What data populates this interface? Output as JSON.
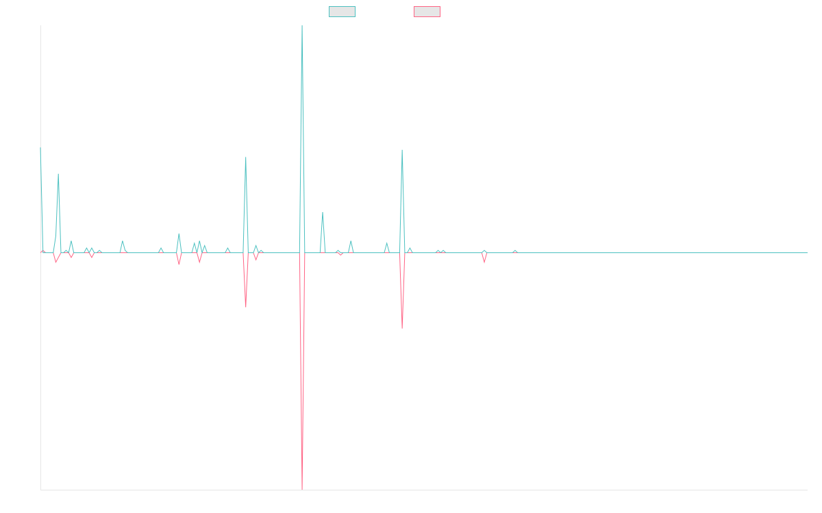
{
  "chart_data": {
    "type": "line",
    "title": "",
    "xlabel": "",
    "ylabel": "",
    "x_count": 300,
    "ylim": [
      -100,
      95
    ],
    "grid": false,
    "legend_position": "top-center",
    "series": [
      {
        "color": "#4bc0c0",
        "legend_fill": "#e6e6e6",
        "points": [
          [
            0,
            44
          ],
          [
            1,
            0
          ],
          [
            2,
            0
          ],
          [
            3,
            0
          ],
          [
            4,
            0
          ],
          [
            5,
            0
          ],
          [
            6,
            7
          ],
          [
            7,
            33
          ],
          [
            8,
            0
          ],
          [
            9,
            0
          ],
          [
            10,
            1
          ],
          [
            11,
            0
          ],
          [
            12,
            5
          ],
          [
            13,
            0
          ],
          [
            14,
            0
          ],
          [
            15,
            0
          ],
          [
            16,
            0
          ],
          [
            17,
            0
          ],
          [
            18,
            2
          ],
          [
            19,
            0
          ],
          [
            20,
            2
          ],
          [
            21,
            0
          ],
          [
            22,
            0
          ],
          [
            23,
            1
          ],
          [
            24,
            0
          ],
          [
            30,
            0
          ],
          [
            31,
            0
          ],
          [
            32,
            5
          ],
          [
            33,
            1
          ],
          [
            34,
            0
          ],
          [
            35,
            0
          ],
          [
            36,
            0
          ],
          [
            38,
            0
          ],
          [
            40,
            0
          ],
          [
            42,
            0
          ],
          [
            46,
            0
          ],
          [
            47,
            2
          ],
          [
            48,
            0
          ],
          [
            50,
            0
          ],
          [
            52,
            0
          ],
          [
            53,
            0
          ],
          [
            54,
            8
          ],
          [
            55,
            0
          ],
          [
            58,
            0
          ],
          [
            59,
            0
          ],
          [
            60,
            4
          ],
          [
            61,
            0
          ],
          [
            62,
            5
          ],
          [
            63,
            0
          ],
          [
            64,
            3
          ],
          [
            65,
            0
          ],
          [
            68,
            0
          ],
          [
            72,
            0
          ],
          [
            73,
            2
          ],
          [
            74,
            0
          ],
          [
            78,
            0
          ],
          [
            79,
            0
          ],
          [
            80,
            40
          ],
          [
            81,
            0
          ],
          [
            82,
            0
          ],
          [
            83,
            0
          ],
          [
            84,
            3
          ],
          [
            85,
            0
          ],
          [
            86,
            1
          ],
          [
            87,
            0
          ],
          [
            90,
            0
          ],
          [
            95,
            0
          ],
          [
            98,
            0
          ],
          [
            99,
            0
          ],
          [
            100,
            0
          ],
          [
            101,
            0
          ],
          [
            102,
            95
          ],
          [
            103,
            0
          ],
          [
            104,
            0
          ],
          [
            105,
            0
          ],
          [
            108,
            0
          ],
          [
            109,
            0
          ],
          [
            110,
            17
          ],
          [
            111,
            0
          ],
          [
            115,
            0
          ],
          [
            116,
            1
          ],
          [
            117,
            0
          ],
          [
            118,
            0
          ],
          [
            119,
            0
          ],
          [
            120,
            0
          ],
          [
            121,
            5
          ],
          [
            122,
            0
          ],
          [
            124,
            0
          ],
          [
            128,
            0
          ],
          [
            130,
            0
          ],
          [
            134,
            0
          ],
          [
            135,
            4
          ],
          [
            136,
            0
          ],
          [
            139,
            0
          ],
          [
            140,
            0
          ],
          [
            141,
            43
          ],
          [
            142,
            0
          ],
          [
            143,
            0
          ],
          [
            144,
            2
          ],
          [
            145,
            0
          ],
          [
            148,
            0
          ],
          [
            150,
            0
          ],
          [
            152,
            0
          ],
          [
            153,
            0
          ],
          [
            154,
            0
          ],
          [
            155,
            1
          ],
          [
            156,
            0
          ],
          [
            157,
            1
          ],
          [
            158,
            0
          ],
          [
            160,
            0
          ],
          [
            163,
            0
          ],
          [
            165,
            0
          ],
          [
            168,
            0
          ],
          [
            170,
            0
          ],
          [
            172,
            0
          ],
          [
            173,
            1
          ],
          [
            174,
            0
          ],
          [
            180,
            0
          ],
          [
            184,
            0
          ],
          [
            185,
            1
          ],
          [
            186,
            0
          ],
          [
            187,
            0
          ],
          [
            188,
            0
          ],
          [
            189,
            0
          ],
          [
            190,
            0
          ],
          [
            191,
            0
          ],
          [
            192,
            0
          ],
          [
            195,
            0
          ],
          [
            200,
            0
          ],
          [
            210,
            0
          ],
          [
            220,
            0
          ],
          [
            230,
            0
          ],
          [
            240,
            0
          ],
          [
            250,
            0
          ],
          [
            260,
            0
          ],
          [
            270,
            0
          ],
          [
            280,
            0
          ],
          [
            290,
            0
          ],
          [
            299,
            0
          ]
        ]
      },
      {
        "color": "#ff6384",
        "legend_fill": "#e6e6e6",
        "points": [
          [
            0,
            0
          ],
          [
            1,
            1
          ],
          [
            2,
            0
          ],
          [
            3,
            0
          ],
          [
            4,
            0
          ],
          [
            5,
            0
          ],
          [
            6,
            -4
          ],
          [
            7,
            -2
          ],
          [
            8,
            0
          ],
          [
            9,
            0
          ],
          [
            10,
            0
          ],
          [
            11,
            0
          ],
          [
            12,
            -2
          ],
          [
            13,
            0
          ],
          [
            14,
            0
          ],
          [
            15,
            0
          ],
          [
            16,
            0
          ],
          [
            17,
            0
          ],
          [
            18,
            0
          ],
          [
            19,
            0
          ],
          [
            20,
            -2
          ],
          [
            21,
            0
          ],
          [
            22,
            0
          ],
          [
            23,
            0
          ],
          [
            24,
            0
          ],
          [
            30,
            0
          ],
          [
            31,
            0
          ],
          [
            32,
            0
          ],
          [
            33,
            0
          ],
          [
            34,
            0
          ],
          [
            35,
            0
          ],
          [
            36,
            0
          ],
          [
            38,
            0
          ],
          [
            40,
            0
          ],
          [
            42,
            0
          ],
          [
            46,
            0
          ],
          [
            47,
            0
          ],
          [
            48,
            0
          ],
          [
            50,
            0
          ],
          [
            52,
            0
          ],
          [
            53,
            0
          ],
          [
            54,
            -5
          ],
          [
            55,
            0
          ],
          [
            58,
            0
          ],
          [
            59,
            0
          ],
          [
            60,
            0
          ],
          [
            61,
            0
          ],
          [
            62,
            -4
          ],
          [
            63,
            0
          ],
          [
            64,
            0
          ],
          [
            65,
            0
          ],
          [
            68,
            0
          ],
          [
            72,
            0
          ],
          [
            73,
            0
          ],
          [
            74,
            0
          ],
          [
            78,
            0
          ],
          [
            79,
            0
          ],
          [
            80,
            -23
          ],
          [
            81,
            0
          ],
          [
            82,
            0
          ],
          [
            83,
            0
          ],
          [
            84,
            -3
          ],
          [
            85,
            0
          ],
          [
            86,
            0
          ],
          [
            87,
            0
          ],
          [
            90,
            0
          ],
          [
            95,
            0
          ],
          [
            98,
            0
          ],
          [
            99,
            0
          ],
          [
            100,
            0
          ],
          [
            101,
            0
          ],
          [
            102,
            -100
          ],
          [
            103,
            0
          ],
          [
            104,
            0
          ],
          [
            105,
            0
          ],
          [
            108,
            0
          ],
          [
            109,
            0
          ],
          [
            110,
            0
          ],
          [
            111,
            0
          ],
          [
            115,
            0
          ],
          [
            116,
            0
          ],
          [
            117,
            -1
          ],
          [
            118,
            0
          ],
          [
            119,
            0
          ],
          [
            120,
            0
          ],
          [
            121,
            0
          ],
          [
            122,
            0
          ],
          [
            124,
            0
          ],
          [
            128,
            0
          ],
          [
            130,
            0
          ],
          [
            134,
            0
          ],
          [
            135,
            0
          ],
          [
            136,
            0
          ],
          [
            139,
            0
          ],
          [
            140,
            0
          ],
          [
            141,
            -32
          ],
          [
            142,
            0
          ],
          [
            143,
            0
          ],
          [
            144,
            0
          ],
          [
            145,
            0
          ],
          [
            148,
            0
          ],
          [
            150,
            0
          ],
          [
            152,
            0
          ],
          [
            153,
            0
          ],
          [
            154,
            0
          ],
          [
            155,
            0
          ],
          [
            156,
            0
          ],
          [
            157,
            0
          ],
          [
            158,
            0
          ],
          [
            160,
            0
          ],
          [
            163,
            0
          ],
          [
            165,
            0
          ],
          [
            168,
            0
          ],
          [
            170,
            0
          ],
          [
            172,
            0
          ],
          [
            173,
            -4
          ],
          [
            174,
            0
          ],
          [
            180,
            0
          ],
          [
            184,
            0
          ],
          [
            185,
            0
          ],
          [
            186,
            0
          ],
          [
            187,
            0
          ],
          [
            188,
            0
          ],
          [
            189,
            0
          ],
          [
            190,
            0
          ],
          [
            191,
            0
          ],
          [
            192,
            0
          ],
          [
            195,
            0
          ],
          [
            200,
            0
          ],
          [
            210,
            0
          ],
          [
            220,
            0
          ],
          [
            230,
            0
          ],
          [
            240,
            0
          ],
          [
            250,
            0
          ],
          [
            260,
            0
          ],
          [
            270,
            0
          ],
          [
            280,
            0
          ],
          [
            290,
            0
          ],
          [
            299,
            0
          ]
        ]
      }
    ]
  }
}
